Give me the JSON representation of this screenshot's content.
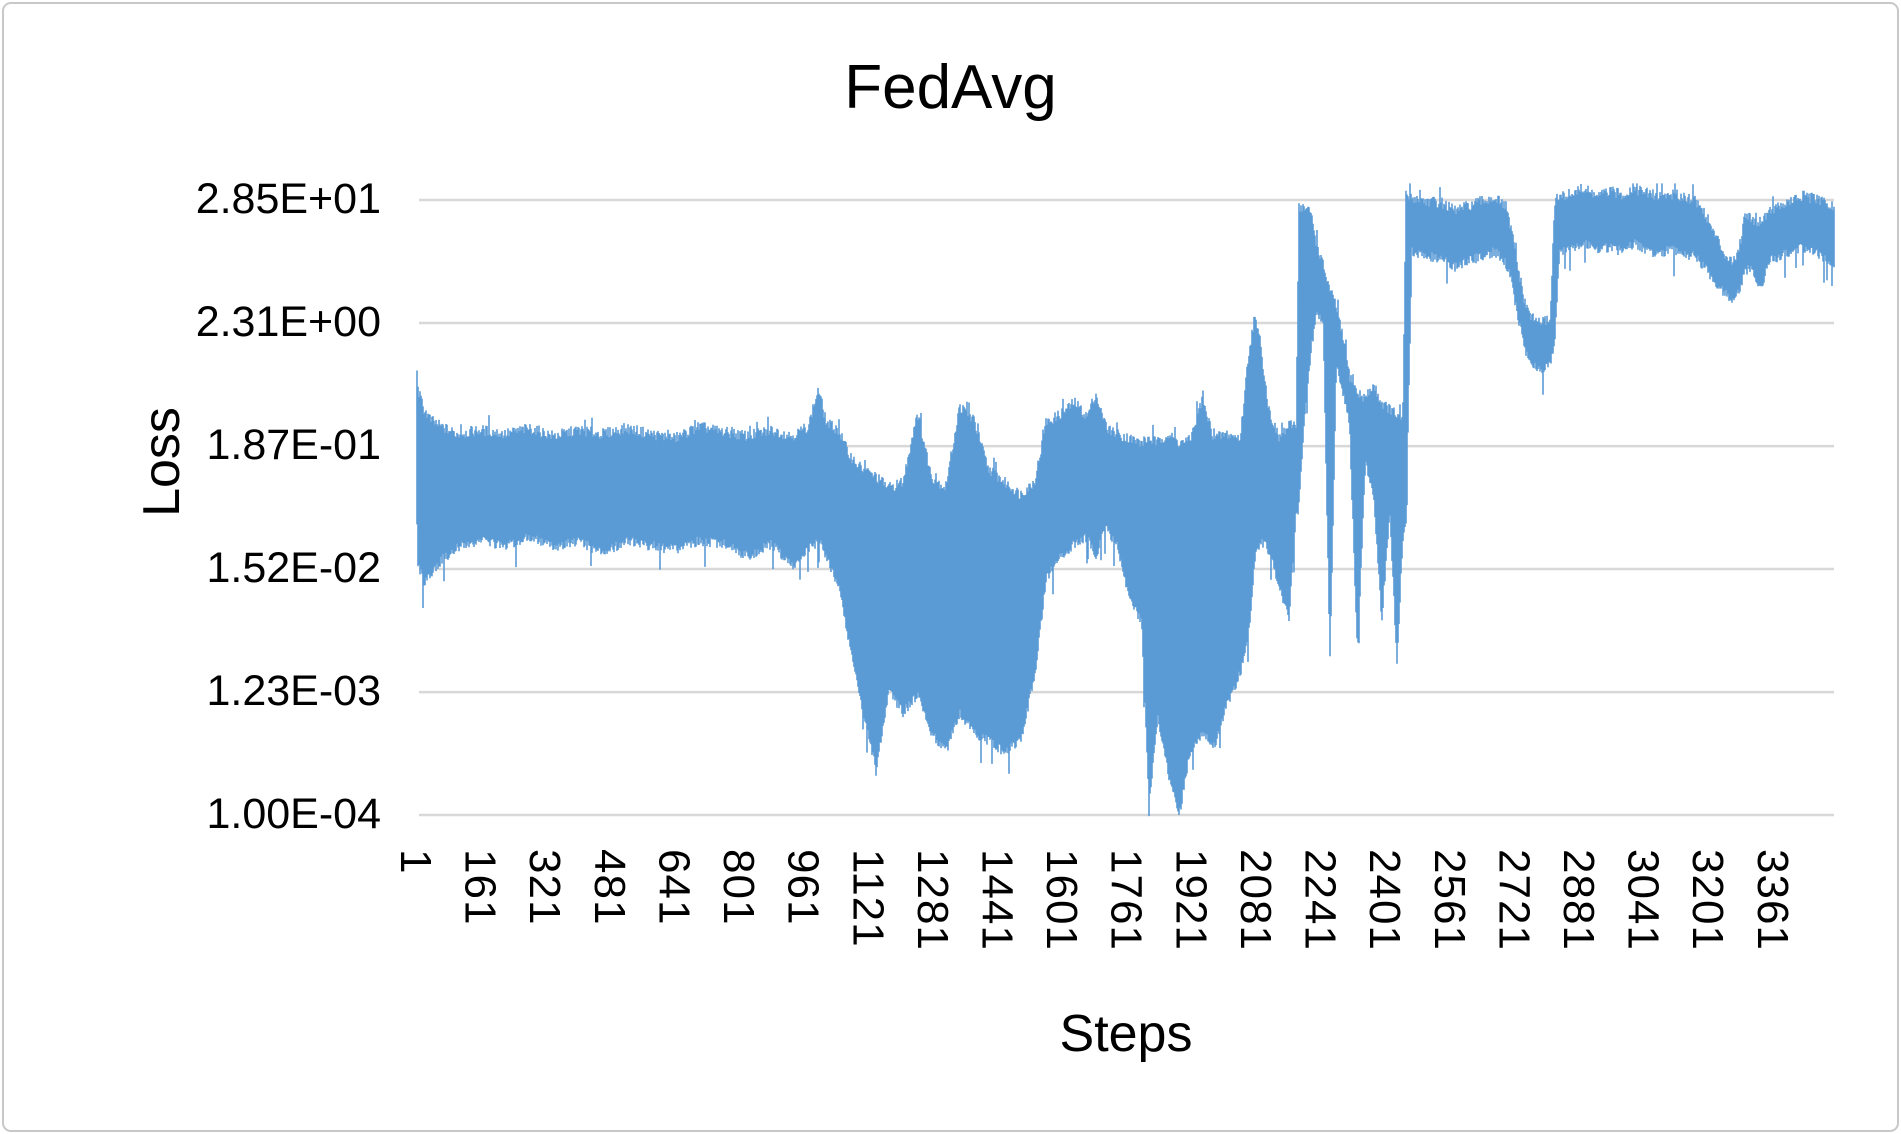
{
  "chart": {
    "title": "FedAvg",
    "x_axis": {
      "label": "Steps"
    },
    "y_axis": {
      "label": "Loss"
    },
    "colors": {
      "series": "#5B9BD5",
      "gridline": "#D8D8D8",
      "frame_border": "#C8C8C8",
      "text": "#000000",
      "background": "#FFFFFF"
    }
  },
  "chart_data": {
    "type": "line",
    "title": "FedAvg",
    "xlabel": "Steps",
    "ylabel": "Loss",
    "legend": "none",
    "grid": "horizontal-only",
    "x_ticks": [
      1,
      161,
      321,
      481,
      641,
      801,
      961,
      1121,
      1281,
      1441,
      1601,
      1761,
      1921,
      2081,
      2241,
      2401,
      2561,
      2721,
      2881,
      3041,
      3201,
      3361
    ],
    "x_tick_labels": [
      "1",
      "161",
      "321",
      "481",
      "641",
      "801",
      "961",
      "1121",
      "1281",
      "1441",
      "1601",
      "1761",
      "1921",
      "2081",
      "2241",
      "2401",
      "2561",
      "2721",
      "2881",
      "3041",
      "3201",
      "3361"
    ],
    "x_range": [
      1,
      3510
    ],
    "y_scale": "log",
    "y_tick_labels": [
      "2.85E+01",
      "2.31E+00",
      "1.87E-01",
      "1.52E-02",
      "1.23E-03",
      "1.00E-04"
    ],
    "y_tick_values": [
      28.5,
      2.31,
      0.187,
      0.0152,
      0.00123,
      0.0001
    ],
    "ylim": [
      0.0001,
      40
    ],
    "series": [
      {
        "name": "Loss",
        "representation": "Noisy single-series line; stored as envelope samples [step, max_loss, min_loss] of the oscillation band read off the chart",
        "envelope": [
          [
            1,
            0.8,
            0.04
          ],
          [
            6,
            0.55,
            0.018
          ],
          [
            18,
            0.4,
            0.012
          ],
          [
            35,
            0.32,
            0.015
          ],
          [
            60,
            0.28,
            0.02
          ],
          [
            100,
            0.24,
            0.026
          ],
          [
            160,
            0.26,
            0.03
          ],
          [
            220,
            0.24,
            0.027
          ],
          [
            280,
            0.27,
            0.032
          ],
          [
            340,
            0.23,
            0.026
          ],
          [
            400,
            0.26,
            0.03
          ],
          [
            460,
            0.24,
            0.023
          ],
          [
            520,
            0.27,
            0.03
          ],
          [
            580,
            0.24,
            0.027
          ],
          [
            640,
            0.22,
            0.025
          ],
          [
            700,
            0.28,
            0.03
          ],
          [
            760,
            0.25,
            0.028
          ],
          [
            820,
            0.23,
            0.022
          ],
          [
            880,
            0.26,
            0.028
          ],
          [
            930,
            0.23,
            0.018
          ],
          [
            970,
            0.28,
            0.025
          ],
          [
            995,
            0.6,
            0.03
          ],
          [
            1015,
            0.3,
            0.022
          ],
          [
            1045,
            0.26,
            0.012
          ],
          [
            1070,
            0.16,
            0.004
          ],
          [
            1100,
            0.12,
            0.0012
          ],
          [
            1138,
            0.1,
            0.00027
          ],
          [
            1170,
            0.08,
            0.0014
          ],
          [
            1205,
            0.09,
            0.0009
          ],
          [
            1240,
            0.38,
            0.0013
          ],
          [
            1275,
            0.1,
            0.0006
          ],
          [
            1310,
            0.08,
            0.0004
          ],
          [
            1345,
            0.42,
            0.0009
          ],
          [
            1380,
            0.32,
            0.0006
          ],
          [
            1415,
            0.12,
            0.0005
          ],
          [
            1455,
            0.09,
            0.0004
          ],
          [
            1495,
            0.07,
            0.0005
          ],
          [
            1530,
            0.09,
            0.0018
          ],
          [
            1560,
            0.3,
            0.014
          ],
          [
            1595,
            0.36,
            0.022
          ],
          [
            1630,
            0.46,
            0.028
          ],
          [
            1660,
            0.34,
            0.032
          ],
          [
            1682,
            0.55,
            0.022
          ],
          [
            1705,
            0.28,
            0.04
          ],
          [
            1735,
            0.24,
            0.028
          ],
          [
            1765,
            0.22,
            0.009
          ],
          [
            1795,
            0.2,
            0.006
          ],
          [
            1814,
            0.22,
            0.00013
          ],
          [
            1835,
            0.2,
            0.0008
          ],
          [
            1858,
            0.24,
            0.0003
          ],
          [
            1888,
            0.2,
            0.000105
          ],
          [
            1915,
            0.21,
            0.0004
          ],
          [
            1945,
            0.48,
            0.0006
          ],
          [
            1975,
            0.22,
            0.00045
          ],
          [
            2005,
            0.24,
            0.001
          ],
          [
            2040,
            0.22,
            0.002
          ],
          [
            2060,
            1.2,
            0.004
          ],
          [
            2075,
            2.6,
            0.02
          ],
          [
            2090,
            1.5,
            0.03
          ],
          [
            2110,
            0.4,
            0.025
          ],
          [
            2135,
            0.22,
            0.012
          ],
          [
            2160,
            0.28,
            0.006
          ],
          [
            2178,
            0.3,
            0.05
          ],
          [
            2185,
            25,
            0.06
          ],
          [
            2200,
            24,
            0.4
          ],
          [
            2215,
            22,
            1.5
          ],
          [
            2228,
            12,
            3
          ],
          [
            2245,
            7.5,
            2.8
          ],
          [
            2262,
            4.5,
            0.0025
          ],
          [
            2278,
            3.2,
            1.2
          ],
          [
            2295,
            1.6,
            0.6
          ],
          [
            2310,
            0.8,
            0.35
          ],
          [
            2330,
            0.55,
            0.003
          ],
          [
            2350,
            0.5,
            0.15
          ],
          [
            2370,
            0.65,
            0.08
          ],
          [
            2390,
            0.45,
            0.006
          ],
          [
            2410,
            0.4,
            0.05
          ],
          [
            2428,
            0.35,
            0.0025
          ],
          [
            2442,
            0.3,
            0.03
          ],
          [
            2450,
            32,
            0.04
          ],
          [
            2465,
            30,
            11
          ],
          [
            2500,
            28,
            10
          ],
          [
            2540,
            27,
            9.5
          ],
          [
            2570,
            23,
            8
          ],
          [
            2600,
            25,
            9
          ],
          [
            2640,
            28,
            10
          ],
          [
            2670,
            30,
            11
          ],
          [
            2695,
            25,
            9
          ],
          [
            2712,
            15,
            6
          ],
          [
            2728,
            7,
            2.8
          ],
          [
            2745,
            3.4,
            1.5
          ],
          [
            2765,
            2.5,
            1.05
          ],
          [
            2790,
            2.35,
            1.0
          ],
          [
            2808,
            2.6,
            1.2
          ],
          [
            2818,
            28,
            1.6
          ],
          [
            2830,
            30,
            11
          ],
          [
            2865,
            33,
            12
          ],
          [
            2895,
            35,
            13
          ],
          [
            2925,
            31,
            11.5
          ],
          [
            2955,
            34,
            12
          ],
          [
            2985,
            32,
            11
          ],
          [
            3015,
            36,
            13
          ],
          [
            3045,
            33,
            11.5
          ],
          [
            3075,
            31,
            10.5
          ],
          [
            3105,
            32,
            11.5
          ],
          [
            3135,
            31,
            10.5
          ],
          [
            3165,
            29,
            10
          ],
          [
            3190,
            22,
            8
          ],
          [
            3215,
            14,
            6
          ],
          [
            3240,
            9.5,
            4.6
          ],
          [
            3262,
            8,
            4.2
          ],
          [
            3278,
            12,
            5
          ],
          [
            3290,
            22,
            7.5
          ],
          [
            3305,
            20,
            8
          ],
          [
            3318,
            18,
            5.4
          ],
          [
            3332,
            19,
            5.6
          ],
          [
            3348,
            23,
            9
          ],
          [
            3375,
            25,
            10
          ],
          [
            3405,
            28,
            11
          ],
          [
            3435,
            31,
            12
          ],
          [
            3465,
            29,
            11
          ],
          [
            3490,
            27,
            9.5
          ],
          [
            3510,
            24,
            7.8
          ]
        ]
      }
    ]
  }
}
